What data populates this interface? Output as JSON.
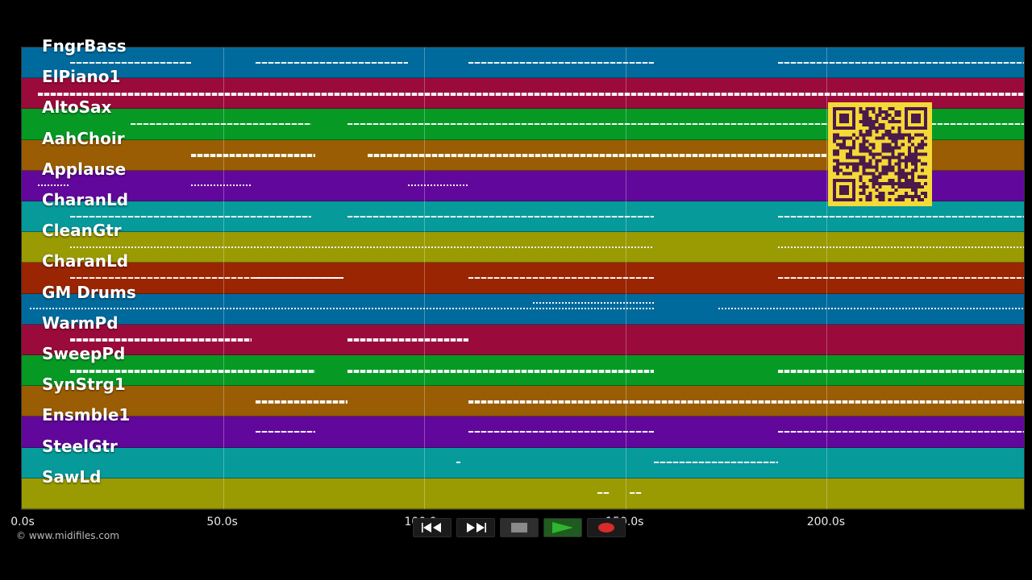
{
  "tracks": [
    {
      "name": "FngrBass",
      "color": "#016a9d"
    },
    {
      "name": "ElPiano1",
      "color": "#9a0b3b"
    },
    {
      "name": "AltoSax",
      "color": "#069a25"
    },
    {
      "name": "AahChoir",
      "color": "#9a5d03"
    },
    {
      "name": "Applause",
      "color": "#62079b"
    },
    {
      "name": "CharanLd",
      "color": "#069a9b"
    },
    {
      "name": "CleanGtr",
      "color": "#9a9a03"
    },
    {
      "name": "CharanLd",
      "color": "#9a2503"
    },
    {
      "name": "GM Drums",
      "color": "#016a9d"
    },
    {
      "name": "WarmPd",
      "color": "#9a0b3b"
    },
    {
      "name": "SweepPd",
      "color": "#069a25"
    },
    {
      "name": "SynStrg1",
      "color": "#9a5d03"
    },
    {
      "name": "Ensmble1",
      "color": "#62079b"
    },
    {
      "name": "SteelGtr",
      "color": "#069a9b"
    },
    {
      "name": "SawLd",
      "color": "#9a9a03"
    }
  ],
  "time_axis": {
    "max_seconds": 249,
    "ticks": [
      {
        "value": 0,
        "label": "0.0s"
      },
      {
        "value": 50,
        "label": "50.0s"
      },
      {
        "value": 100,
        "label": "100.0s"
      },
      {
        "value": 150,
        "label": "150.0s"
      },
      {
        "value": 200,
        "label": "200.0s"
      }
    ]
  },
  "copyright": "© www.midifiles.com",
  "qr_code": {
    "color": "#f5d936",
    "module_color": "#4a1a4a"
  },
  "controls": [
    {
      "name": "rewind-button",
      "icon": "rewind-icon"
    },
    {
      "name": "fast-forward-button",
      "icon": "fast-forward-icon"
    },
    {
      "name": "stop-button",
      "icon": "stop-icon"
    },
    {
      "name": "play-button",
      "icon": "play-icon",
      "color": "#2fb52f"
    },
    {
      "name": "record-button",
      "icon": "record-icon",
      "color": "#d92b2b"
    }
  ],
  "note_segments": [
    [
      [
        12,
        42
      ],
      [
        58,
        96
      ],
      [
        111,
        157
      ],
      [
        188,
        249
      ]
    ],
    [
      [
        4,
        249
      ]
    ],
    [
      [
        27,
        72
      ],
      [
        81,
        157
      ],
      [
        157,
        249
      ]
    ],
    [
      [
        42,
        73
      ],
      [
        86,
        157
      ],
      [
        157,
        200
      ]
    ],
    [
      [
        4,
        12
      ],
      [
        42,
        57
      ],
      [
        96,
        111
      ]
    ],
    [
      [
        12,
        72
      ],
      [
        81,
        157
      ],
      [
        188,
        249
      ]
    ],
    [
      [
        12,
        157
      ],
      [
        188,
        249
      ]
    ],
    [
      [
        12,
        80
      ],
      [
        58,
        80
      ],
      [
        111,
        157
      ],
      [
        188,
        249
      ]
    ],
    [
      [
        2,
        157
      ],
      [
        46,
        57
      ],
      [
        127,
        157
      ],
      [
        173,
        249
      ]
    ],
    [
      [
        12,
        57
      ],
      [
        81,
        111
      ]
    ],
    [
      [
        12,
        73
      ],
      [
        81,
        157
      ],
      [
        188,
        249
      ]
    ],
    [
      [
        58,
        81
      ],
      [
        111,
        249
      ]
    ],
    [
      [
        58,
        73
      ],
      [
        111,
        157
      ],
      [
        188,
        249
      ]
    ],
    [
      [
        108,
        109
      ],
      [
        157,
        188
      ]
    ],
    [
      [
        143,
        146
      ],
      [
        151,
        154
      ]
    ]
  ]
}
